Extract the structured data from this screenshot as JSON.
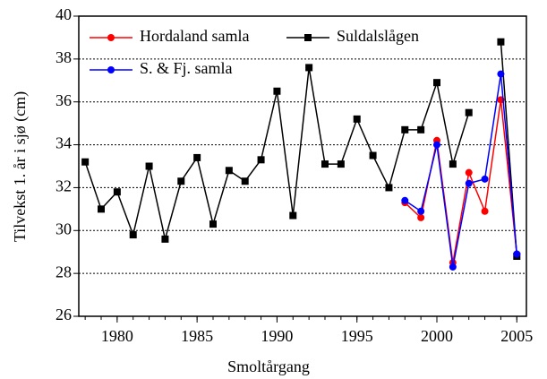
{
  "chart_data": {
    "type": "line",
    "x_label": "Smoltårgang",
    "y_label": "Tilvekst 1. år i sjø (cm)",
    "x": [
      1978,
      1979,
      1980,
      1981,
      1982,
      1983,
      1984,
      1985,
      1986,
      1987,
      1988,
      1989,
      1990,
      1991,
      1992,
      1993,
      1994,
      1995,
      1996,
      1997,
      1998,
      1999,
      2000,
      2001,
      2002,
      2003,
      2004,
      2005
    ],
    "series": [
      {
        "name": "Hordaland samla",
        "color": "#ff0000",
        "values": [
          null,
          null,
          null,
          null,
          null,
          null,
          null,
          null,
          null,
          null,
          null,
          null,
          null,
          null,
          null,
          null,
          null,
          null,
          null,
          null,
          31.3,
          30.6,
          34.2,
          28.5,
          32.7,
          30.9,
          36.1,
          28.9
        ]
      },
      {
        "name": "Suldalslågen",
        "color": "#000000",
        "values": [
          33.2,
          31.0,
          31.8,
          29.8,
          33.0,
          29.6,
          32.3,
          33.4,
          30.3,
          32.8,
          32.3,
          33.3,
          36.5,
          30.7,
          37.6,
          33.1,
          33.1,
          35.2,
          33.5,
          32.0,
          34.7,
          34.7,
          36.9,
          33.1,
          35.5,
          null,
          38.8,
          28.8
        ]
      },
      {
        "name": "S. & Fj. samla",
        "color": "#0000ff",
        "values": [
          null,
          null,
          null,
          null,
          null,
          null,
          null,
          null,
          null,
          null,
          null,
          null,
          null,
          null,
          null,
          null,
          null,
          null,
          null,
          null,
          31.4,
          30.9,
          34.0,
          28.3,
          32.2,
          32.4,
          37.3,
          28.9
        ]
      }
    ],
    "xlim": [
      1977.6,
      2005.6
    ],
    "xticks": [
      1980,
      1985,
      1990,
      1995,
      2000,
      2005
    ],
    "ylim": [
      26,
      40
    ],
    "yticks": [
      26,
      28,
      30,
      32,
      34,
      36,
      38,
      40
    ],
    "grid": true
  }
}
